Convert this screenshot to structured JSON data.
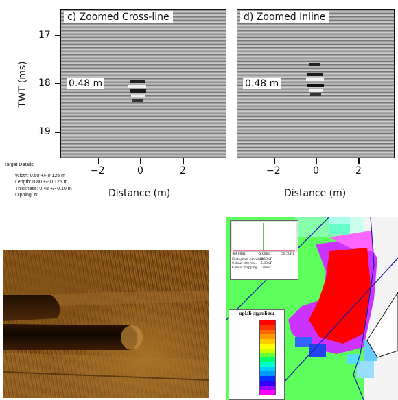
{
  "panel_c": {
    "title": "c) Zoomed Cross-line",
    "inner_label": "0.48 m",
    "y_ticks": [
      "17",
      "18",
      "19"
    ],
    "x_ticks": [
      "−2",
      "0",
      "2"
    ],
    "ylabel": "TWT (ms)",
    "xlabel": "Distance (m)"
  },
  "panel_d": {
    "title": "d) Zoomed Inline",
    "inner_label": "0.48 m",
    "x_ticks": [
      "−2",
      "0",
      "2"
    ],
    "xlabel": "Distance (m)"
  },
  "target_details": {
    "heading": "Target Details:",
    "width": "Width: 0.50 +/- 0.125 m",
    "length": "Length: 0.80 +/- 0.125 m",
    "thickness": "Thickness: 0.48 +/- 0.10 m",
    "dipping": "Dipping: N"
  },
  "magnetic_map": {
    "histogram": {
      "min_label": "-69.08nT",
      "mid_label": "-5.00nT",
      "max_label": "58.50nT",
      "bin_width_label": "Histogram bin width:",
      "bin_width_value": "0.50nT",
      "colour_interval_label": "Colour interval:",
      "colour_interval_value": "5.00nT",
      "colour_mapping_label": "Colour mapping:",
      "colour_mapping_value": "Linear"
    },
    "legend_title": "Magnetic grid",
    "legend_title_display": "uplɹƃ ɔᴉʇǝuƃɐɯ",
    "legend_colors": [
      "#ff0000",
      "#ff3300",
      "#ff6600",
      "#ff9900",
      "#ffcc00",
      "#ffff00",
      "#ccff00",
      "#66ff33",
      "#00ff66",
      "#00ffcc",
      "#00ccff",
      "#0099ff",
      "#0033ff",
      "#3300ff",
      "#9900ff",
      "#ff00ff"
    ]
  }
}
